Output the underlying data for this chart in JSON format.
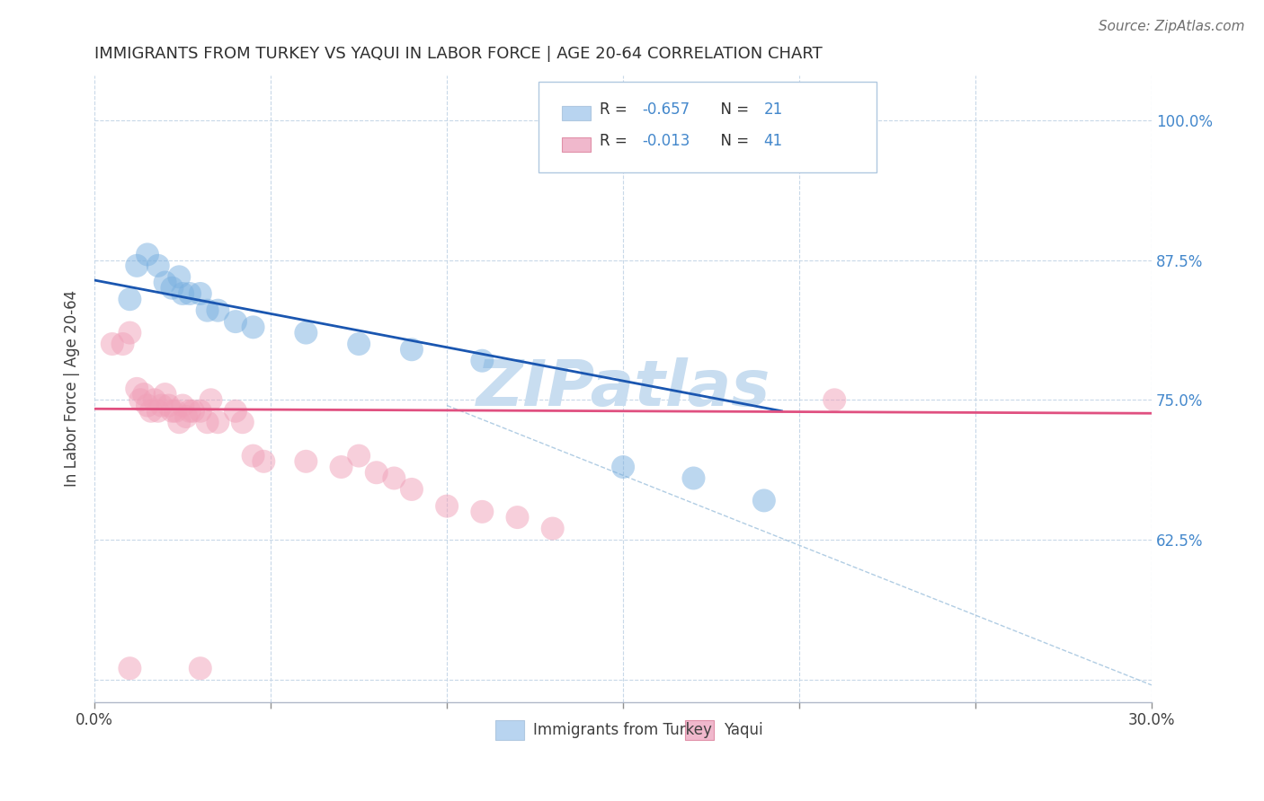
{
  "title": "IMMIGRANTS FROM TURKEY VS YAQUI IN LABOR FORCE | AGE 20-64 CORRELATION CHART",
  "source_text": "Source: ZipAtlas.com",
  "ylabel": "In Labor Force | Age 20-64",
  "xlim": [
    0.0,
    0.3
  ],
  "ylim": [
    0.48,
    1.04
  ],
  "xticks": [
    0.0,
    0.05,
    0.1,
    0.15,
    0.2,
    0.25,
    0.3
  ],
  "xticklabels": [
    "0.0%",
    "",
    "",
    "",
    "",
    "",
    "30.0%"
  ],
  "yticks": [
    0.5,
    0.625,
    0.75,
    0.875,
    1.0
  ],
  "yticklabels": [
    "",
    "62.5%",
    "75.0%",
    "87.5%",
    "100.0%"
  ],
  "legend_r_label1": "R = ",
  "legend_r_val1": "-0.657",
  "legend_n_label1": "  N = ",
  "legend_n_val1": "21",
  "legend_r_label2": "R = ",
  "legend_r_val2": "-0.013",
  "legend_n_label2": "  N = ",
  "legend_n_val2": "41",
  "turkey_scatter": [
    [
      0.01,
      0.84
    ],
    [
      0.012,
      0.87
    ],
    [
      0.015,
      0.88
    ],
    [
      0.018,
      0.87
    ],
    [
      0.02,
      0.855
    ],
    [
      0.022,
      0.85
    ],
    [
      0.024,
      0.86
    ],
    [
      0.025,
      0.845
    ],
    [
      0.027,
      0.845
    ],
    [
      0.03,
      0.845
    ],
    [
      0.032,
      0.83
    ],
    [
      0.035,
      0.83
    ],
    [
      0.04,
      0.82
    ],
    [
      0.045,
      0.815
    ],
    [
      0.06,
      0.81
    ],
    [
      0.075,
      0.8
    ],
    [
      0.09,
      0.795
    ],
    [
      0.11,
      0.785
    ],
    [
      0.15,
      0.69
    ],
    [
      0.17,
      0.68
    ],
    [
      0.19,
      0.66
    ]
  ],
  "yaqui_scatter": [
    [
      0.005,
      0.8
    ],
    [
      0.008,
      0.8
    ],
    [
      0.01,
      0.81
    ],
    [
      0.012,
      0.76
    ],
    [
      0.013,
      0.75
    ],
    [
      0.014,
      0.755
    ],
    [
      0.015,
      0.745
    ],
    [
      0.016,
      0.74
    ],
    [
      0.017,
      0.75
    ],
    [
      0.018,
      0.74
    ],
    [
      0.019,
      0.745
    ],
    [
      0.02,
      0.755
    ],
    [
      0.021,
      0.745
    ],
    [
      0.022,
      0.74
    ],
    [
      0.023,
      0.74
    ],
    [
      0.024,
      0.73
    ],
    [
      0.025,
      0.745
    ],
    [
      0.026,
      0.735
    ],
    [
      0.027,
      0.74
    ],
    [
      0.028,
      0.74
    ],
    [
      0.03,
      0.74
    ],
    [
      0.032,
      0.73
    ],
    [
      0.033,
      0.75
    ],
    [
      0.035,
      0.73
    ],
    [
      0.04,
      0.74
    ],
    [
      0.042,
      0.73
    ],
    [
      0.045,
      0.7
    ],
    [
      0.048,
      0.695
    ],
    [
      0.06,
      0.695
    ],
    [
      0.07,
      0.69
    ],
    [
      0.075,
      0.7
    ],
    [
      0.08,
      0.685
    ],
    [
      0.085,
      0.68
    ],
    [
      0.09,
      0.67
    ],
    [
      0.1,
      0.655
    ],
    [
      0.11,
      0.65
    ],
    [
      0.12,
      0.645
    ],
    [
      0.13,
      0.635
    ],
    [
      0.21,
      0.75
    ],
    [
      0.01,
      0.51
    ],
    [
      0.03,
      0.51
    ]
  ],
  "turkey_line": {
    "x": [
      0.0,
      0.195
    ],
    "y": [
      0.857,
      0.74
    ]
  },
  "yaqui_line": {
    "x": [
      0.0,
      0.3
    ],
    "y": [
      0.742,
      0.738
    ]
  },
  "dashed_line": {
    "x": [
      0.1,
      0.3
    ],
    "y": [
      0.745,
      0.495
    ]
  },
  "turkey_color": "#7ab0e0",
  "yaqui_color": "#f0a0b8",
  "turkey_line_color": "#1a56b0",
  "yaqui_line_color": "#e05080",
  "dashed_line_color": "#90b8d8",
  "grid_color": "#c8d8e8",
  "grid_style": "--",
  "background_color": "#ffffff",
  "right_ytick_color": "#4488cc",
  "title_color": "#303030",
  "source_color": "#707070",
  "legend_box_color1": "#b8d4f0",
  "legend_box_color2": "#f0b8cc",
  "legend_border_color": "#b0c8e0",
  "watermark_color": "#c8ddf0",
  "watermark_text": "ZIPatlas",
  "bottom_legend": [
    "Immigrants from Turkey",
    "Yaqui"
  ]
}
